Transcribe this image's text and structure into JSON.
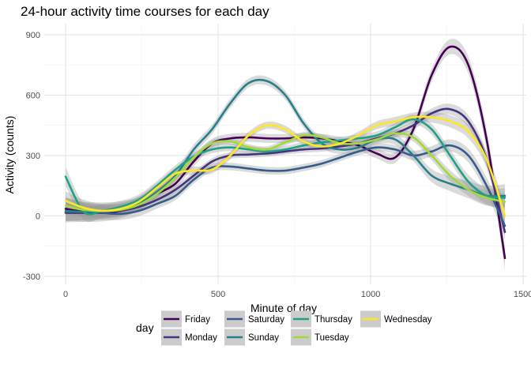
{
  "chart_data": {
    "type": "line",
    "title": "24-hour activity time courses for each day",
    "xlabel": "Minute of day",
    "ylabel": "Activity (counts)",
    "xlim": [
      -70,
      1510
    ],
    "ylim": [
      -340,
      955
    ],
    "x_ticks": [
      0,
      500,
      1000,
      1500
    ],
    "x_tick_labels": [
      "0",
      "500",
      "1000",
      "1500"
    ],
    "y_ticks": [
      -300,
      0,
      300,
      600,
      900
    ],
    "y_tick_labels": [
      "-300",
      "0",
      "300",
      "600",
      "900"
    ],
    "grid": true,
    "legend": {
      "title": "day",
      "position": "bottom",
      "ncol": 4
    },
    "x": [
      0,
      60,
      120,
      180,
      240,
      300,
      360,
      420,
      480,
      540,
      600,
      660,
      720,
      780,
      840,
      900,
      960,
      1020,
      1080,
      1140,
      1200,
      1260,
      1320,
      1380,
      1440
    ],
    "series": [
      {
        "name": "Friday",
        "color": "#440154",
        "band": 22,
        "values": [
          35,
          20,
          15,
          25,
          60,
          110,
          160,
          270,
          360,
          385,
          390,
          385,
          385,
          390,
          385,
          370,
          350,
          310,
          290,
          430,
          700,
          840,
          750,
          380,
          -210
        ]
      },
      {
        "name": "Monday",
        "color": "#46337E",
        "band": 16,
        "values": [
          15,
          15,
          20,
          25,
          45,
          80,
          130,
          200,
          270,
          300,
          305,
          310,
          320,
          330,
          335,
          345,
          360,
          385,
          410,
          450,
          510,
          530,
          470,
          280,
          -80
        ]
      },
      {
        "name": "Saturday",
        "color": "#365C8D",
        "band": 18,
        "values": [
          20,
          20,
          15,
          10,
          25,
          60,
          100,
          180,
          240,
          245,
          235,
          225,
          225,
          240,
          260,
          290,
          320,
          340,
          330,
          300,
          320,
          350,
          300,
          150,
          -50
        ]
      },
      {
        "name": "Sunday",
        "color": "#277F8E",
        "band": 22,
        "values": [
          25,
          20,
          25,
          35,
          60,
          120,
          200,
          330,
          430,
          560,
          660,
          670,
          600,
          460,
          360,
          330,
          340,
          380,
          380,
          300,
          200,
          160,
          130,
          100,
          100
        ]
      },
      {
        "name": "Thursday",
        "color": "#1FA187",
        "band": 18,
        "values": [
          195,
          20,
          25,
          45,
          80,
          150,
          230,
          295,
          330,
          340,
          330,
          320,
          330,
          350,
          365,
          375,
          385,
          400,
          440,
          480,
          430,
          300,
          170,
          100,
          90
        ]
      },
      {
        "name": "Tuesday",
        "color": "#9FDA3A",
        "band": 16,
        "values": [
          50,
          30,
          25,
          30,
          55,
          110,
          190,
          290,
          360,
          370,
          340,
          330,
          365,
          400,
          390,
          360,
          360,
          380,
          410,
          390,
          300,
          200,
          130,
          90,
          70
        ]
      },
      {
        "name": "Wednesday",
        "color": "#FDE725",
        "band": 18,
        "values": [
          75,
          40,
          25,
          35,
          70,
          140,
          210,
          225,
          230,
          300,
          400,
          450,
          430,
          370,
          345,
          360,
          400,
          450,
          470,
          490,
          490,
          470,
          420,
          280,
          0
        ]
      }
    ]
  }
}
